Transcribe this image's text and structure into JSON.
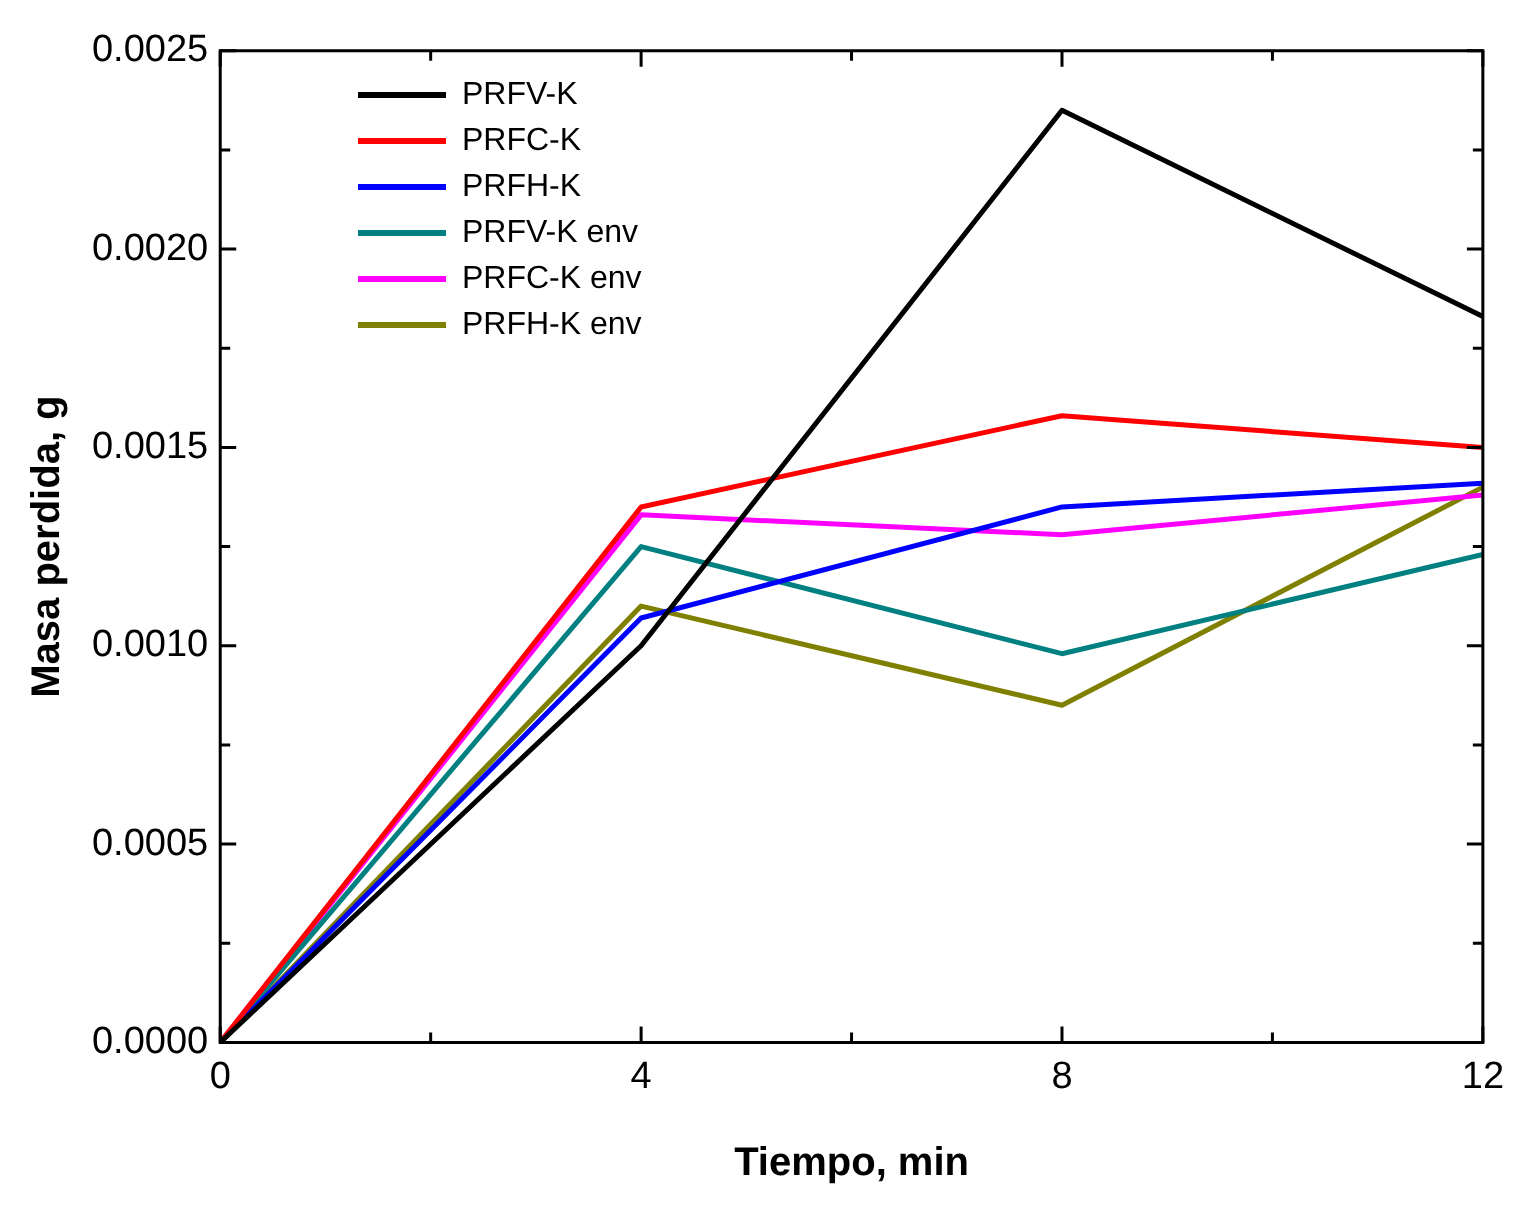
{
  "chart_data": {
    "type": "line",
    "xlabel": "Tiempo, min",
    "ylabel": "Masa perdida, g",
    "x": [
      0,
      4,
      8,
      12
    ],
    "xlim": [
      0,
      12
    ],
    "xticks": [
      0,
      4,
      8,
      12
    ],
    "ylim": [
      0,
      0.0025
    ],
    "yticks": [
      {
        "value": 0,
        "label": "0.0000"
      },
      {
        "value": 0.0005,
        "label": "0.0005"
      },
      {
        "value": 0.001,
        "label": "0.0010"
      },
      {
        "value": 0.0015,
        "label": "0.0015"
      },
      {
        "value": 0.002,
        "label": "0.0020"
      },
      {
        "value": 0.0025,
        "label": "0.0025"
      }
    ],
    "grid": false,
    "legend": "top left",
    "marker": "none",
    "line_style": "solid",
    "series": [
      {
        "name": "PRFV-K",
        "color": "#000000",
        "values": [
          0,
          0.001,
          0.00235,
          0.00183
        ]
      },
      {
        "name": "PRFC-K",
        "color": "#ff0000",
        "values": [
          0,
          0.00135,
          0.00158,
          0.0015
        ]
      },
      {
        "name": "PRFH-K",
        "color": "#0000ff",
        "values": [
          0,
          0.00107,
          0.00135,
          0.00141
        ]
      },
      {
        "name": "PRFV-K env",
        "color": "#008080",
        "values": [
          0,
          0.00125,
          0.00098,
          0.00123
        ]
      },
      {
        "name": "PRFC-K env",
        "color": "#ff00ff",
        "values": [
          0,
          0.00133,
          0.00128,
          0.00138
        ]
      },
      {
        "name": "PRFH-K env",
        "color": "#808000",
        "values": [
          0,
          0.0011,
          0.00085,
          0.0014
        ]
      }
    ]
  }
}
